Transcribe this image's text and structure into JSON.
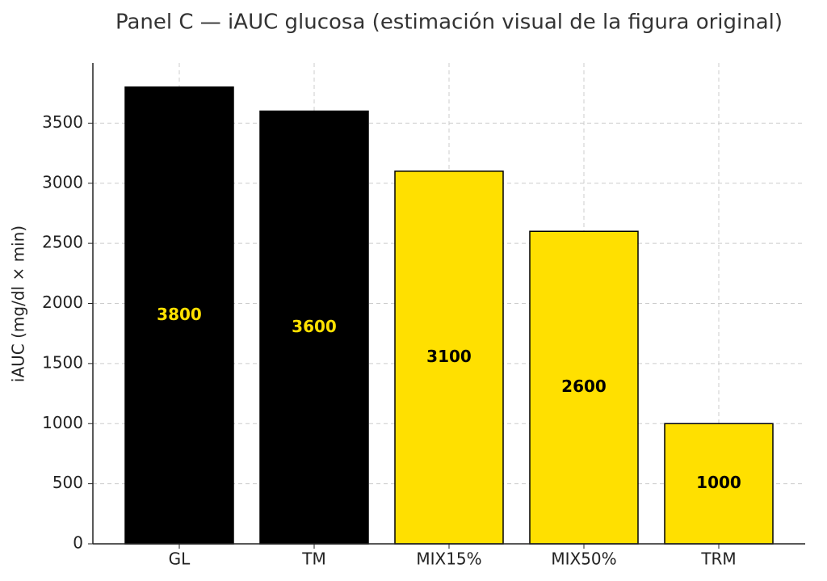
{
  "chart_data": {
    "type": "bar",
    "title": "Panel C — iAUC glucosa (estimación visual de la figura original)",
    "ylabel": "iAUC (mg/dl × min)",
    "categories": [
      "GL",
      "TM",
      "MIX15%",
      "MIX50%",
      "TRM"
    ],
    "values": [
      3800,
      3600,
      3100,
      2600,
      1000
    ],
    "colors": [
      "#000000",
      "#000000",
      "#ffe000",
      "#ffe000",
      "#ffe000"
    ],
    "label_colors": [
      "#ffe000",
      "#ffe000",
      "#000000",
      "#000000",
      "#000000"
    ],
    "ylim": [
      0,
      4000
    ],
    "yticks": [
      0,
      500,
      1000,
      1500,
      2000,
      2500,
      3000,
      3500
    ],
    "grid": true
  }
}
